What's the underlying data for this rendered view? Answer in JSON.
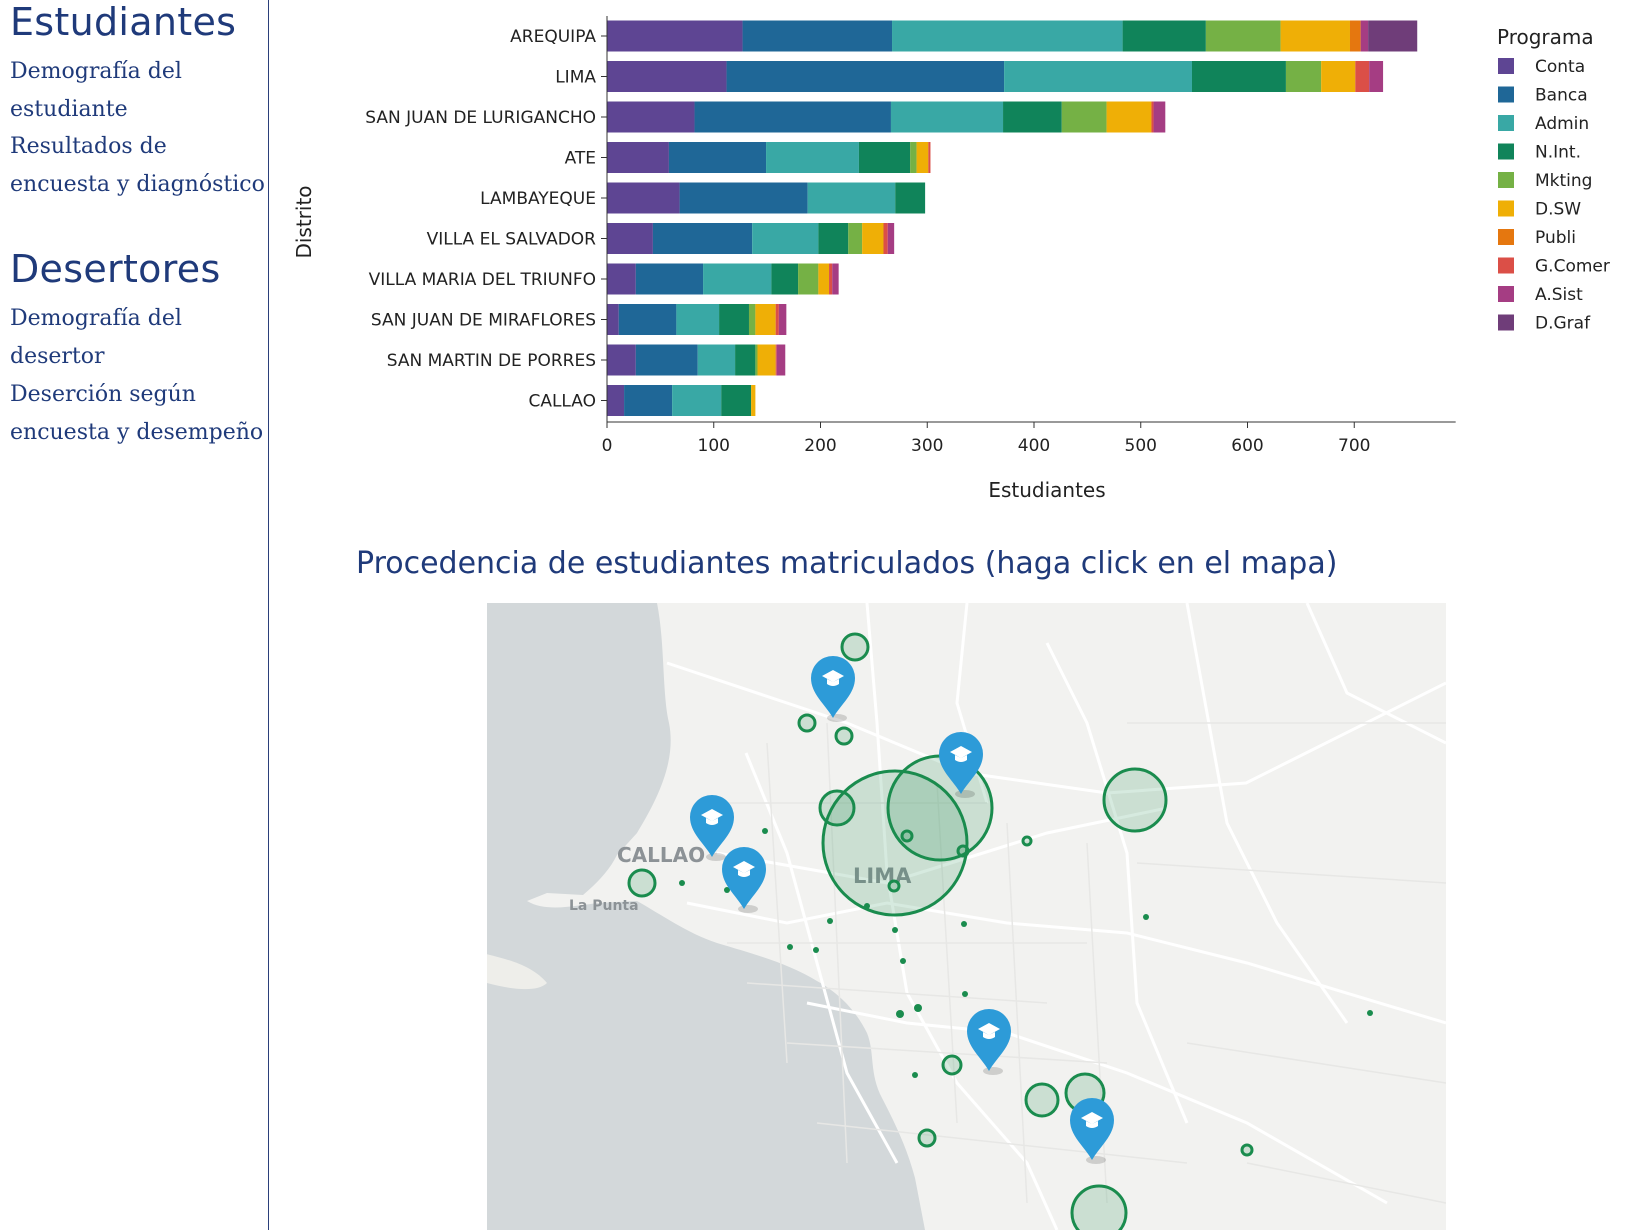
{
  "sidebar": {
    "sections": [
      {
        "title": "Estudiantes",
        "links": [
          "Demografía del estudiante",
          "Resultados de encuesta y diagnóstico"
        ]
      },
      {
        "title": "Desertores",
        "links": [
          "Demografía del desertor",
          "Deserción según encuesta y desempeño"
        ]
      }
    ]
  },
  "chart_data": {
    "type": "bar",
    "orientation": "horizontal",
    "stacked": true,
    "xlabel": "Estudiantes",
    "ylabel": "Distrito",
    "xlim": [
      0,
      795
    ],
    "xticks": [
      0,
      100,
      200,
      300,
      400,
      500,
      600,
      700
    ],
    "legend_title": "Programa",
    "legend_position": "right",
    "categories": [
      "AREQUIPA",
      "LIMA",
      "SAN JUAN DE LURIGANCHO",
      "ATE",
      "LAMBAYEQUE",
      "VILLA EL SALVADOR",
      "VILLA MARIA DEL TRIUNFO",
      "SAN JUAN DE MIRAFLORES",
      "SAN MARTIN DE PORRES",
      "CALLAO"
    ],
    "series": [
      {
        "name": "Conta",
        "color": "#5e4593",
        "values": [
          127,
          112,
          82,
          58,
          68,
          43,
          27,
          11,
          27,
          16
        ]
      },
      {
        "name": "Banca",
        "color": "#1f6797",
        "values": [
          140,
          260,
          184,
          91,
          120,
          93,
          63,
          54,
          58,
          45
        ]
      },
      {
        "name": "Admin",
        "color": "#39a8a5",
        "values": [
          216,
          176,
          105,
          87,
          82,
          62,
          64,
          40,
          35,
          46
        ]
      },
      {
        "name": "N.Int.",
        "color": "#10845a",
        "values": [
          78,
          88,
          55,
          48,
          28,
          28,
          25,
          28,
          19,
          28
        ]
      },
      {
        "name": "Mkting",
        "color": "#75b145",
        "values": [
          70,
          33,
          42,
          6,
          0,
          13,
          19,
          6,
          2,
          0
        ]
      },
      {
        "name": "D.SW",
        "color": "#efaf06",
        "values": [
          65,
          32,
          42,
          11,
          0,
          20,
          10,
          19,
          17,
          4
        ]
      },
      {
        "name": "Publi",
        "color": "#e5770f",
        "values": [
          10,
          0,
          0,
          0,
          0,
          0,
          0,
          0,
          0,
          0
        ]
      },
      {
        "name": "G.Comer",
        "color": "#db4f47",
        "values": [
          0,
          13,
          2,
          2,
          0,
          4,
          3,
          3,
          1,
          0
        ]
      },
      {
        "name": "A.Sist",
        "color": "#a53d83",
        "values": [
          7,
          13,
          11,
          0,
          0,
          6,
          6,
          7,
          8,
          0
        ]
      },
      {
        "name": "D.Graf",
        "color": "#6f3d79",
        "values": [
          46,
          0,
          0,
          0,
          0,
          0,
          0,
          0,
          0,
          0
        ]
      }
    ]
  },
  "map": {
    "title": "Procedencia de estudiantes matriculados (haga click en el mapa)",
    "labels": [
      "CALLAO",
      "LIMA",
      "La Punta"
    ],
    "marker_icon": "graduation-cap-icon",
    "marker_color": "#2d9bd8",
    "circle_color": "#1a8c4e"
  }
}
